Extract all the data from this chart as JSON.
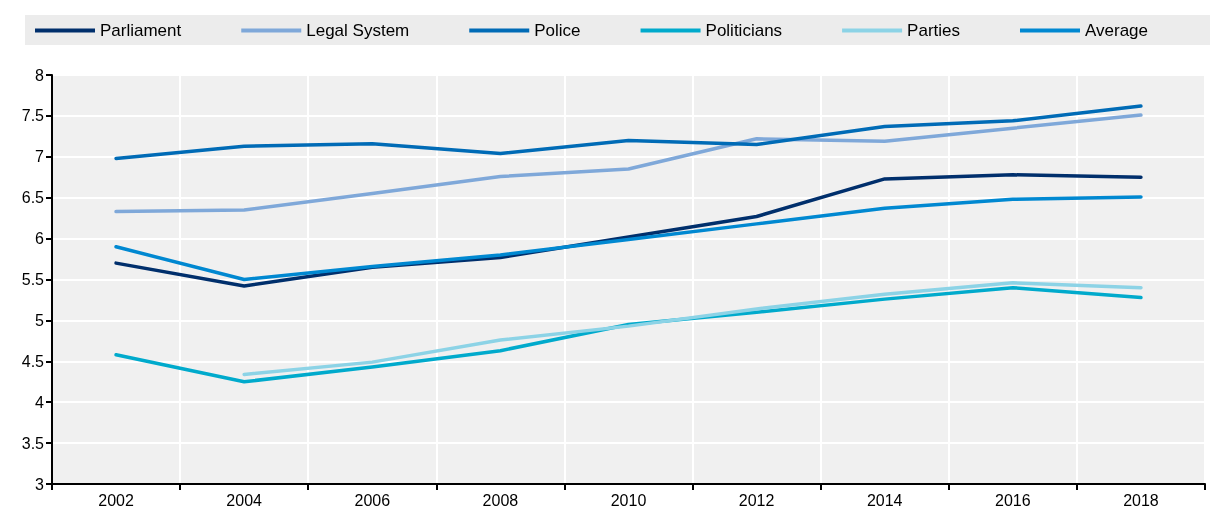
{
  "chart_data": {
    "type": "line",
    "categories": [
      "2002",
      "2004",
      "2006",
      "2008",
      "2010",
      "2012",
      "2014",
      "2016",
      "2018"
    ],
    "series": [
      {
        "name": "Parliament",
        "color": "#002f6c",
        "values": [
          5.7,
          5.42,
          5.65,
          5.77,
          6.02,
          6.27,
          6.73,
          6.78,
          6.75
        ]
      },
      {
        "name": "Legal System",
        "color": "#7fa8d9",
        "values": [
          6.33,
          6.35,
          6.55,
          6.76,
          6.85,
          7.22,
          7.19,
          7.35,
          7.51
        ]
      },
      {
        "name": "Police",
        "color": "#006bb6",
        "values": [
          6.98,
          7.13,
          7.16,
          7.04,
          7.2,
          7.15,
          7.37,
          7.44,
          7.62
        ]
      },
      {
        "name": "Politicians",
        "color": "#00aacc",
        "values": [
          4.58,
          4.25,
          4.43,
          4.63,
          4.95,
          5.1,
          5.26,
          5.4,
          5.28
        ]
      },
      {
        "name": "Parties",
        "color": "#8cd3e6",
        "values": [
          null,
          4.34,
          4.49,
          4.76,
          4.93,
          5.14,
          5.32,
          5.46,
          5.4
        ]
      },
      {
        "name": "Average",
        "color": "#0088d1",
        "values": [
          5.9,
          5.5,
          5.66,
          5.8,
          5.99,
          6.18,
          6.37,
          6.48,
          6.51
        ]
      }
    ],
    "ylim": [
      3,
      8
    ],
    "yticks": [
      3,
      3.5,
      4,
      4.5,
      5,
      5.5,
      6,
      6.5,
      7,
      7.5,
      8
    ],
    "grid": true,
    "legend": "top",
    "marker": "none",
    "line_style": "solid"
  }
}
